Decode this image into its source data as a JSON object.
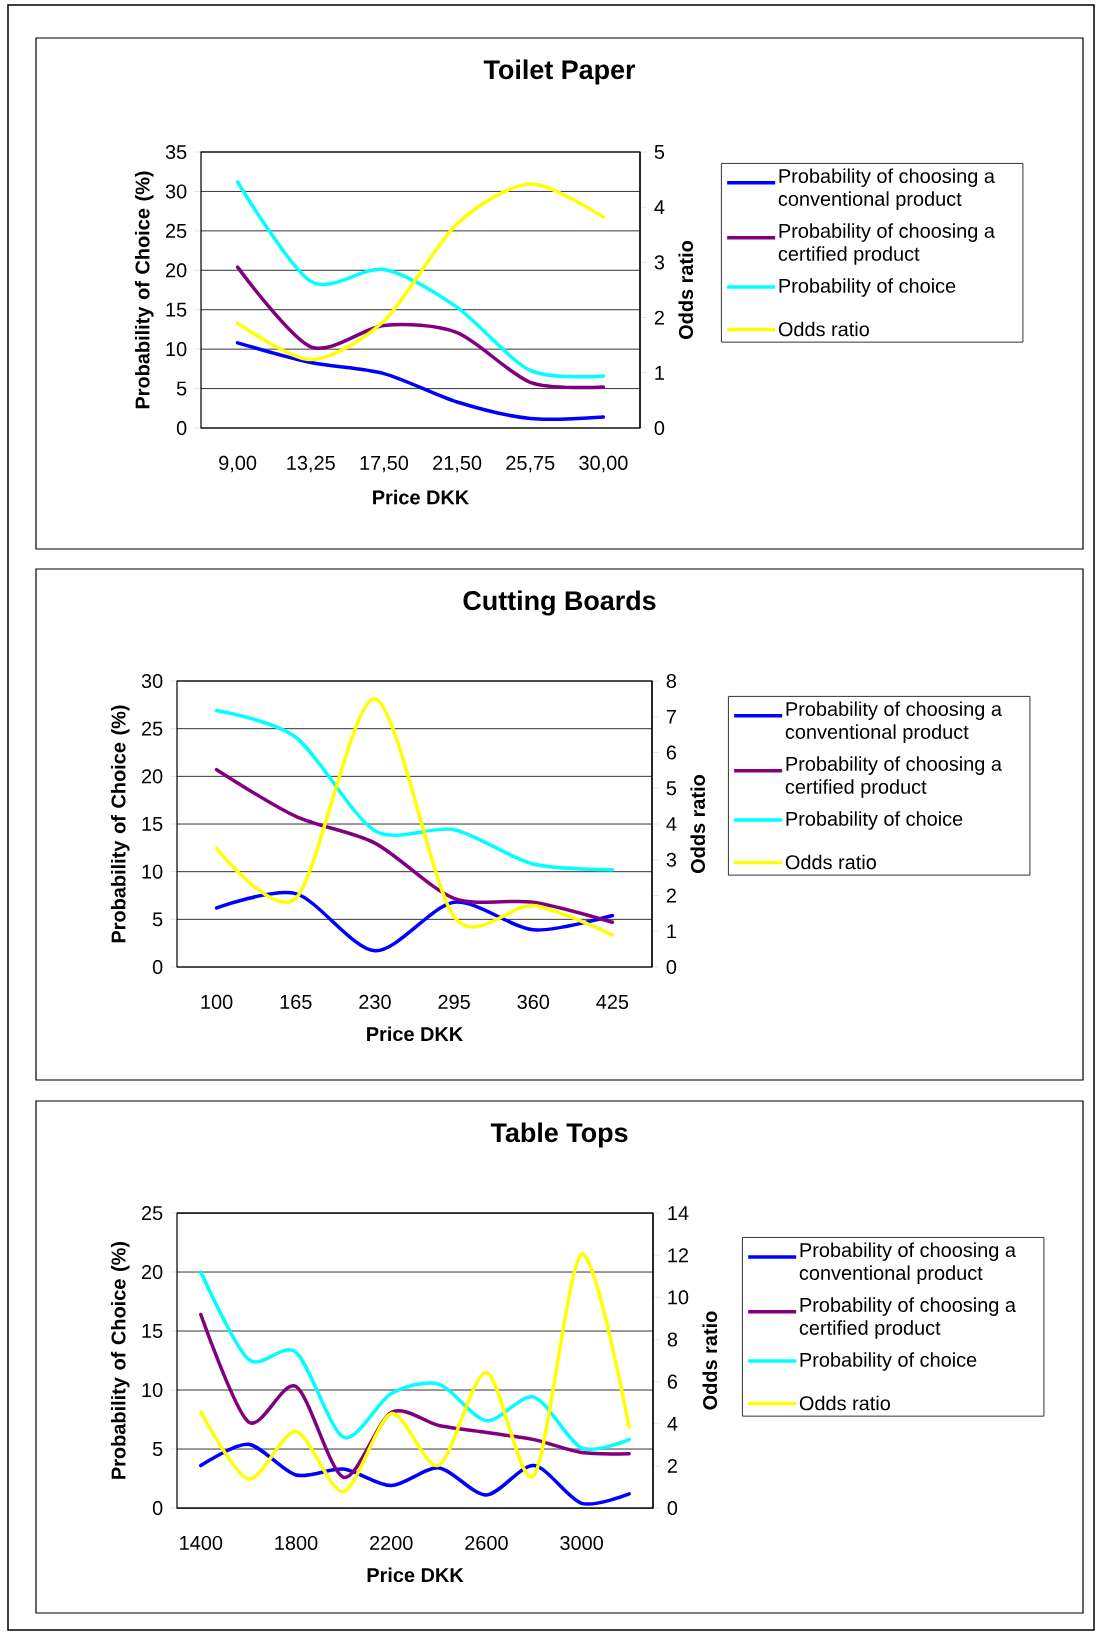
{
  "chart_data": [
    {
      "type": "line",
      "title": "Toilet Paper",
      "xlabel": "Price DKK",
      "ylabel": "Probability of Choice (%)",
      "y2label": "Odds ratio",
      "categories": [
        "9,00",
        "13,25",
        "17,50",
        "21,50",
        "25,75",
        "30,00"
      ],
      "series": [
        {
          "name": "Probability of choosing a conventional product",
          "color": "#0000ff",
          "values": [
            10.8,
            8.3,
            6.9,
            3.3,
            1.2,
            1.4
          ]
        },
        {
          "name": "Probability of choosing a certified product",
          "color": "#800080",
          "values": [
            20.4,
            10.3,
            13.0,
            12.1,
            5.8,
            5.2
          ]
        },
        {
          "name": "Probability of choice",
          "color": "#00ffff",
          "values": [
            31.2,
            18.6,
            20.1,
            15.3,
            7.3,
            6.6
          ]
        },
        {
          "name": "Odds ratio",
          "color": "#ffff00",
          "axis": "y2",
          "values": [
            1.9,
            1.24,
            1.94,
            3.7,
            4.42,
            3.82
          ]
        }
      ],
      "ylim": [
        0,
        35
      ],
      "yticks": [
        0,
        5,
        10,
        15,
        20,
        25,
        30,
        35
      ],
      "y2lim": [
        0,
        5
      ],
      "y2ticks": [
        0,
        1,
        2,
        3,
        4,
        5
      ],
      "grid": "y",
      "legend": "right"
    },
    {
      "type": "line",
      "title": "Cutting Boards",
      "xlabel": "Price DKK",
      "ylabel": "Probability of Choice (%)",
      "y2label": "Odds ratio",
      "categories": [
        "100",
        "165",
        "230",
        "295",
        "360",
        "425"
      ],
      "series": [
        {
          "name": "Probability of choosing a conventional product",
          "color": "#0000ff",
          "values": [
            6.2,
            7.7,
            1.7,
            6.8,
            3.9,
            5.4
          ]
        },
        {
          "name": "Probability of choosing a certified product",
          "color": "#800080",
          "values": [
            20.7,
            15.8,
            13.0,
            7.2,
            6.8,
            4.7
          ]
        },
        {
          "name": "Probability of choice",
          "color": "#00ffff",
          "values": [
            26.9,
            24.1,
            14.3,
            14.4,
            10.8,
            10.2
          ]
        },
        {
          "name": "Odds ratio",
          "color": "#ffff00",
          "axis": "y2",
          "values": [
            3.32,
            1.92,
            7.5,
            1.4,
            1.72,
            0.9
          ]
        }
      ],
      "ylim": [
        0,
        30
      ],
      "yticks": [
        0,
        5,
        10,
        15,
        20,
        25,
        30
      ],
      "y2lim": [
        0,
        8
      ],
      "y2ticks": [
        0,
        1,
        2,
        3,
        4,
        5,
        6,
        7,
        8
      ],
      "grid": "y",
      "legend": "right"
    },
    {
      "type": "line",
      "title": "Table Tops",
      "xlabel": "Price DKK",
      "ylabel": "Probability of Choice (%)",
      "y2label": "Odds ratio",
      "categories": [
        "1400",
        null,
        "1800",
        null,
        "2200",
        null,
        "2600",
        null,
        "3000",
        null
      ],
      "series": [
        {
          "name": "Probability of choosing a conventional product",
          "color": "#0000ff",
          "values": [
            3.6,
            5.4,
            2.8,
            3.3,
            1.9,
            3.4,
            1.1,
            3.6,
            0.4,
            1.2
          ]
        },
        {
          "name": "Probability of choosing a certified product",
          "color": "#800080",
          "values": [
            16.4,
            7.3,
            10.3,
            2.6,
            8.1,
            7.0,
            6.4,
            5.8,
            4.7,
            4.6
          ]
        },
        {
          "name": "Probability of choice",
          "color": "#00ffff",
          "values": [
            20.0,
            12.6,
            13.2,
            6.0,
            9.7,
            10.5,
            7.4,
            9.4,
            5.1,
            5.8
          ]
        },
        {
          "name": "Odds ratio",
          "color": "#ffff00",
          "axis": "y2",
          "values": [
            4.56,
            1.38,
            3.63,
            0.78,
            4.48,
            2.03,
            6.43,
            1.55,
            12.05,
            3.83
          ]
        }
      ],
      "ylim": [
        0,
        25
      ],
      "yticks": [
        0,
        5,
        10,
        15,
        20,
        25
      ],
      "y2lim": [
        0,
        14
      ],
      "y2ticks": [
        0,
        2,
        4,
        6,
        8,
        10,
        12,
        14
      ],
      "grid": "y",
      "legend": "right"
    }
  ]
}
